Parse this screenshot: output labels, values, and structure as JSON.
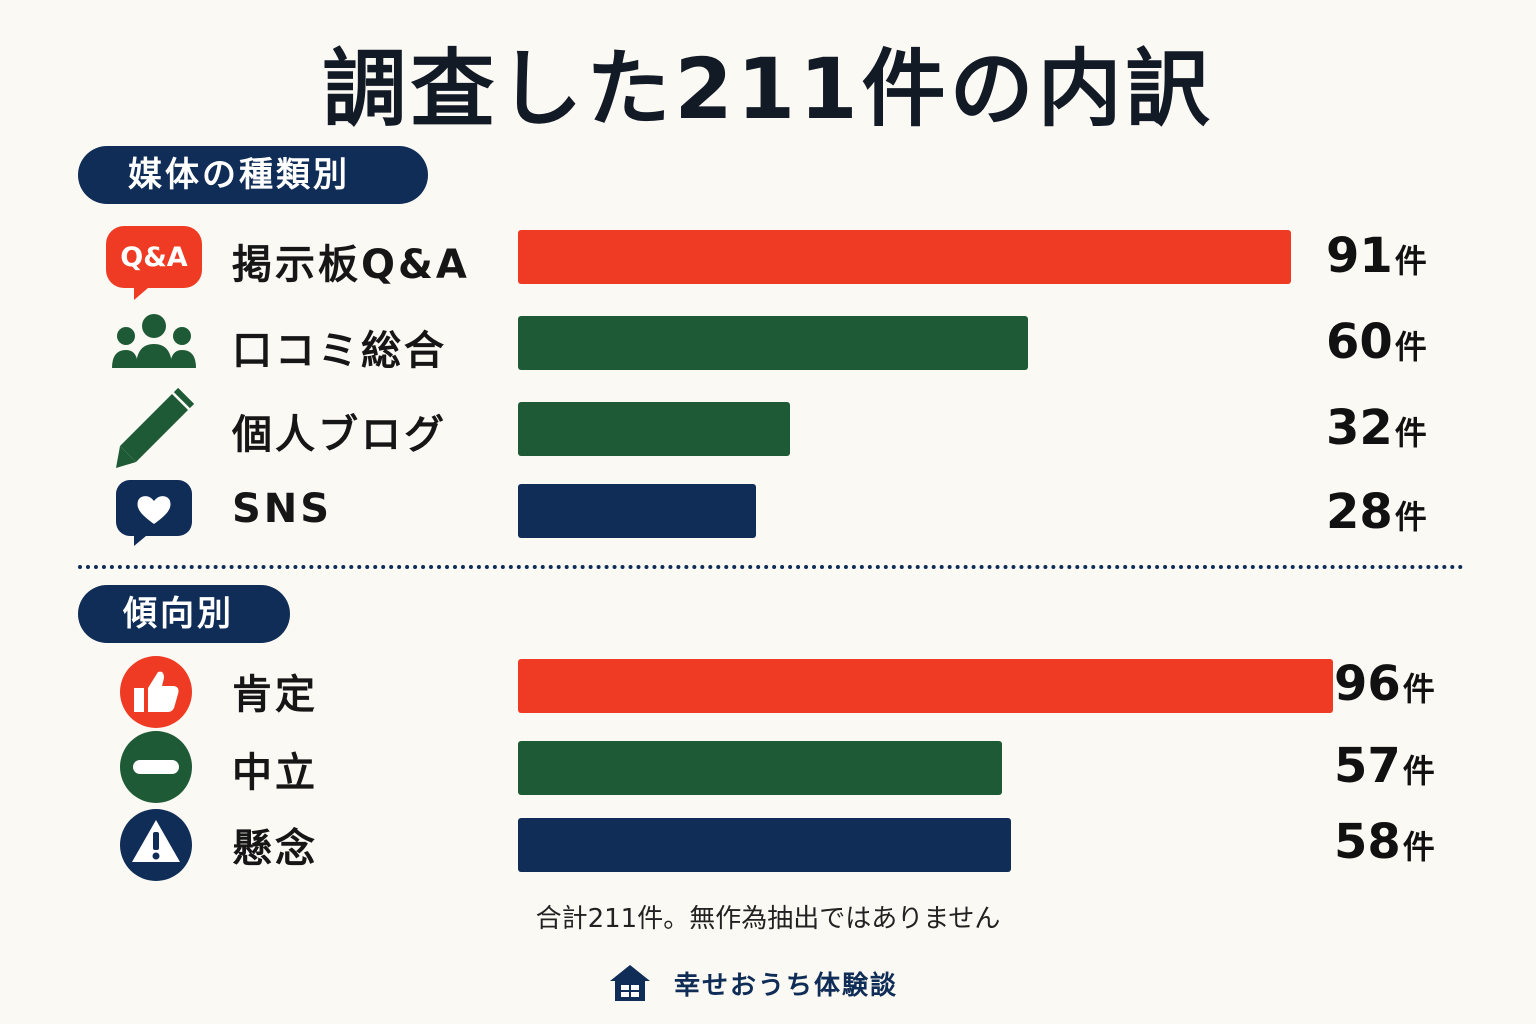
{
  "title": "調査した211件の内訳",
  "sections": {
    "media": {
      "heading": "媒体の種類別"
    },
    "trend": {
      "heading": "傾向別"
    }
  },
  "unit": "件",
  "icons": {
    "qa_badge_text": "Q&A"
  },
  "footnote": "合計211件。無作為抽出ではありません",
  "brand": {
    "name": "幸せおうち体験談",
    "icon": "house-icon"
  },
  "colors": {
    "red": "#ef3b24",
    "green": "#1f5a36",
    "navy": "#0f2d57",
    "background": "#fbf9f4"
  },
  "chart_data": [
    {
      "type": "bar",
      "orientation": "horizontal",
      "title": "媒体の種類別",
      "categories": [
        "掲示板Q&A",
        "口コミ総合",
        "個人ブログ",
        "SNS"
      ],
      "values": [
        91,
        60,
        32,
        28
      ],
      "value_labels": [
        "91",
        "60",
        "32",
        "28"
      ],
      "icons": [
        "qa-bubble-icon",
        "people-icon",
        "pencil-icon",
        "heart-bubble-icon"
      ],
      "bar_colors": [
        "#ef3b24",
        "#1f5a36",
        "#1f5a36",
        "#0f2d57"
      ],
      "grid": false,
      "legend": "none"
    },
    {
      "type": "bar",
      "orientation": "horizontal",
      "title": "傾向別",
      "categories": [
        "肯定",
        "中立",
        "懸念"
      ],
      "values": [
        96,
        57,
        58
      ],
      "value_labels": [
        "96",
        "57",
        "58"
      ],
      "icons": [
        "thumbs-up-icon",
        "minus-circle-icon",
        "warning-icon"
      ],
      "bar_colors": [
        "#ef3b24",
        "#1f5a36",
        "#0f2d57"
      ],
      "grid": false,
      "legend": "none"
    }
  ]
}
